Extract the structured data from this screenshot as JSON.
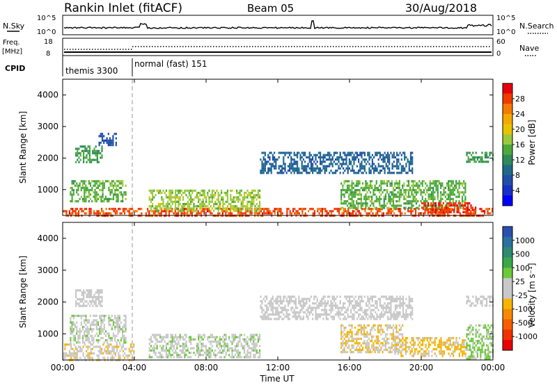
{
  "header": {
    "title": "Rankin Inlet (fitACF)",
    "beam": "Beam 05",
    "date": "30/Aug/2018"
  },
  "top_panels": {
    "nsky_label": "N.Sky",
    "nsky_ticks": [
      "10^5",
      "10^0"
    ],
    "nsearch_label": "N.Search",
    "nsearch_ticks": [
      "10^5",
      "10^0"
    ],
    "freq_label_1": "Freq.",
    "freq_label_2": "[MHz]",
    "freq_ticks": [
      "18",
      "8"
    ],
    "nave_label": "Nave",
    "nave_ticks": [
      "60",
      "0"
    ],
    "cpid_label": "CPID",
    "cpid_segments": [
      {
        "label": "themis 3300",
        "start_hour": 0.0
      },
      {
        "label": "normal (fast) 151",
        "start_hour": 4.0
      }
    ]
  },
  "panels": [
    {
      "ylabel": "Slant Range [km]",
      "yticks": [
        "4000",
        "3000",
        "2000",
        "1000"
      ],
      "colorbar": {
        "label": "Power [dB]",
        "ticks": [
          "28",
          "24",
          "20",
          "16",
          "12",
          "8",
          "4"
        ],
        "colors": [
          "#e8000b",
          "#f23a00",
          "#f77a00",
          "#f5a800",
          "#e8c400",
          "#9cc93a",
          "#4caa3c",
          "#2e8b57",
          "#1f6a8a",
          "#1f4fa8",
          "#1730c8",
          "#0000ff"
        ]
      }
    },
    {
      "ylabel": "Slant Range [km]",
      "yticks": [
        "4000",
        "3000",
        "2000",
        "1000"
      ],
      "colorbar": {
        "label": "Velocity [m s⁻¹]",
        "ticks": [
          "1000",
          "500",
          "100",
          "25",
          "-25",
          "-100",
          "-500",
          "-1000"
        ],
        "colors": [
          "#2a4fb0",
          "#2d6fa0",
          "#2e8a70",
          "#3aa84a",
          "#6cc93a",
          "#c8c8c8",
          "#c8c8c8",
          "#f7b500",
          "#f78a00",
          "#f75e00",
          "#f23000",
          "#e80000"
        ]
      }
    }
  ],
  "xaxis": {
    "label": "Time UT",
    "ticks": [
      "00:00",
      "04:00",
      "08:00",
      "12:00",
      "16:00",
      "20:00",
      "00:00"
    ]
  },
  "chart_data": [
    {
      "type": "heatmap",
      "title": "Rankin Inlet (fitACF) Beam 05 30/Aug/2018",
      "xlabel": "Time UT",
      "ylabel": "Slant Range [km]",
      "xlim_hours": [
        0,
        24
      ],
      "ylim_km": [
        180,
        4500
      ],
      "z_label": "Power [dB]",
      "z_range": [
        0,
        30
      ],
      "echo_regions": [
        {
          "t_start": 0.0,
          "t_end": 24.0,
          "r_min": 180,
          "r_max": 420,
          "value": 26
        },
        {
          "t_start": 0.4,
          "t_end": 3.5,
          "r_min": 600,
          "r_max": 1300,
          "value": 14
        },
        {
          "t_start": 0.7,
          "t_end": 2.2,
          "r_min": 1900,
          "r_max": 2400,
          "value": 12
        },
        {
          "t_start": 2.0,
          "t_end": 3.0,
          "r_min": 2400,
          "r_max": 2800,
          "value": 6
        },
        {
          "t_start": 4.8,
          "t_end": 11.0,
          "r_min": 300,
          "r_max": 1000,
          "value": 16
        },
        {
          "t_start": 11.0,
          "t_end": 19.5,
          "r_min": 1500,
          "r_max": 2200,
          "value": 8
        },
        {
          "t_start": 15.5,
          "t_end": 22.5,
          "r_min": 400,
          "r_max": 1300,
          "value": 14
        },
        {
          "t_start": 20.0,
          "t_end": 23.0,
          "r_min": 300,
          "r_max": 600,
          "value": 27
        },
        {
          "t_start": 22.5,
          "t_end": 24.0,
          "r_min": 1900,
          "r_max": 2200,
          "value": 12
        }
      ]
    },
    {
      "type": "heatmap",
      "title": "Rankin Inlet (fitACF) Beam 05 30/Aug/2018",
      "xlabel": "Time UT",
      "ylabel": "Slant Range [km]",
      "xlim_hours": [
        0,
        24
      ],
      "ylim_km": [
        180,
        4500
      ],
      "z_label": "Velocity [m s⁻¹]",
      "z_range": [
        -1000,
        1000
      ],
      "echo_regions": [
        {
          "t_start": 0.0,
          "t_end": 4.0,
          "r_min": 180,
          "r_max": 700,
          "value": -100
        },
        {
          "t_start": 0.4,
          "t_end": 3.5,
          "r_min": 700,
          "r_max": 1600,
          "value": 100
        },
        {
          "t_start": 0.7,
          "t_end": 2.2,
          "r_min": 1900,
          "r_max": 2400,
          "value": 0
        },
        {
          "t_start": 4.8,
          "t_end": 11.0,
          "r_min": 300,
          "r_max": 1000,
          "value": 100
        },
        {
          "t_start": 11.0,
          "t_end": 19.5,
          "r_min": 1500,
          "r_max": 2200,
          "value": 0
        },
        {
          "t_start": 15.5,
          "t_end": 19.0,
          "r_min": 400,
          "r_max": 1300,
          "value": -150
        },
        {
          "t_start": 18.5,
          "t_end": 22.5,
          "r_min": 300,
          "r_max": 900,
          "value": -200
        },
        {
          "t_start": 22.5,
          "t_end": 24.0,
          "r_min": 1900,
          "r_max": 2200,
          "value": 0
        },
        {
          "t_start": 22.5,
          "t_end": 24.0,
          "r_min": 200,
          "r_max": 1300,
          "value": 200
        }
      ]
    }
  ]
}
